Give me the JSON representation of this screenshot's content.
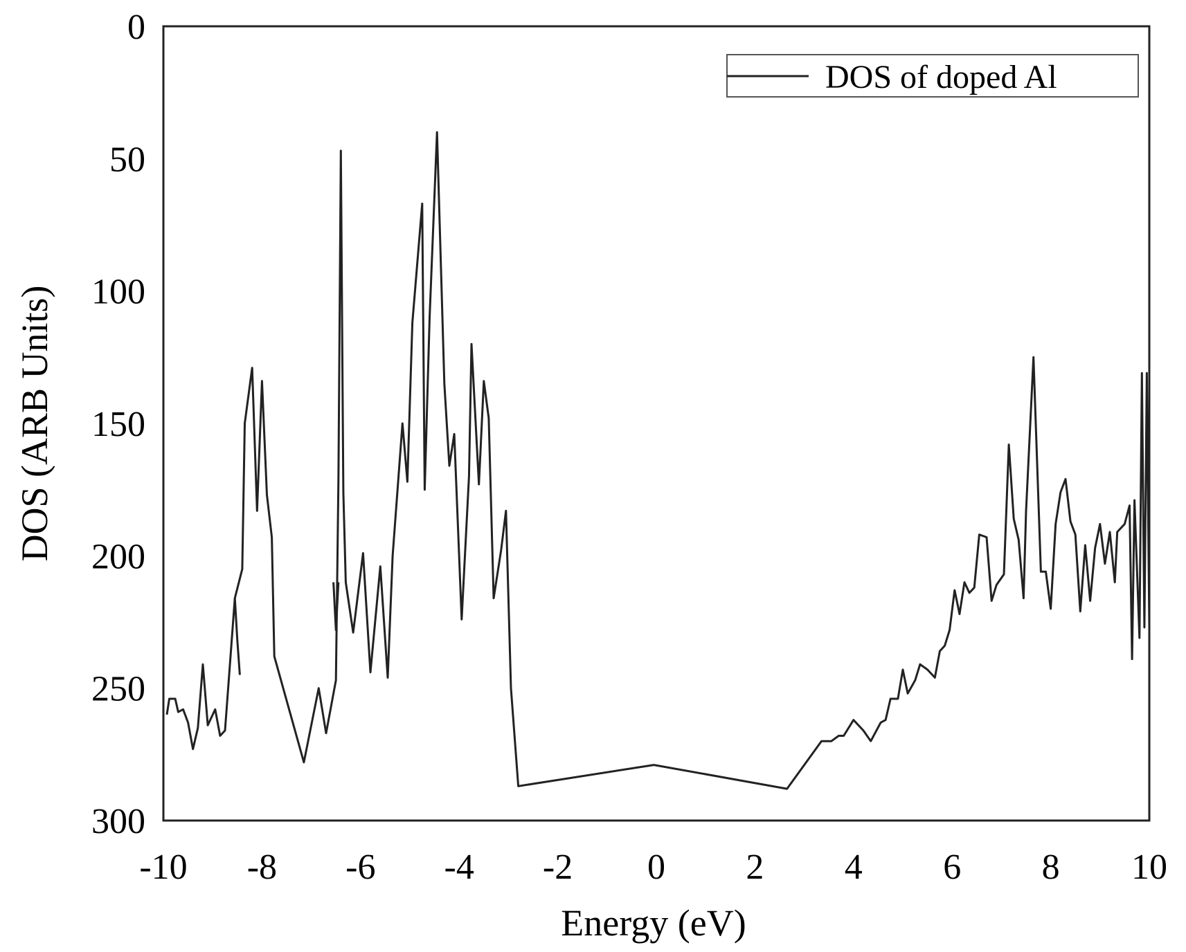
{
  "chart_data": {
    "type": "line",
    "title": "",
    "xlabel": "Energy (eV)",
    "ylabel": "DOS (ARB Units)",
    "xlim": [
      -10,
      10
    ],
    "ylim": [
      0,
      300
    ],
    "y_inverted": true,
    "grid": false,
    "legend_position": "top-right",
    "x_ticks": [
      "-10",
      "-8",
      "-6",
      "-4",
      "-2",
      "0",
      "2",
      "4",
      "6",
      "8",
      "10"
    ],
    "y_ticks": [
      "0",
      "50",
      "100",
      "150",
      "200",
      "250",
      "300"
    ],
    "line_color": "#222222",
    "series": [
      {
        "name": "DOS of doped Al",
        "segments": [
          [
            [
              -9.93,
              260
            ],
            [
              -9.88,
              254
            ],
            [
              -9.76,
              254
            ],
            [
              -9.7,
              259
            ],
            [
              -9.6,
              258
            ],
            [
              -9.5,
              263
            ],
            [
              -9.4,
              273
            ],
            [
              -9.3,
              265
            ],
            [
              -9.2,
              241
            ],
            [
              -9.1,
              264
            ],
            [
              -8.95,
              258
            ],
            [
              -8.85,
              268
            ],
            [
              -8.75,
              266
            ],
            [
              -8.55,
              216
            ],
            [
              -8.4,
              205
            ],
            [
              -8.35,
              150
            ],
            [
              -8.2,
              129
            ],
            [
              -8.1,
              183
            ],
            [
              -8.0,
              134
            ],
            [
              -7.9,
              177
            ],
            [
              -7.8,
              193
            ],
            [
              -7.75,
              238
            ],
            [
              -7.15,
              278
            ],
            [
              -6.85,
              250
            ],
            [
              -6.7,
              267
            ],
            [
              -6.5,
              247
            ],
            [
              -6.45,
              172
            ],
            [
              -6.4,
              47
            ],
            [
              -6.35,
              176
            ],
            [
              -6.3,
              210
            ],
            [
              -6.15,
              229
            ],
            [
              -5.95,
              199
            ],
            [
              -5.8,
              244
            ],
            [
              -5.6,
              204
            ],
            [
              -5.45,
              246
            ],
            [
              -5.35,
              200
            ],
            [
              -5.15,
              150
            ],
            [
              -5.05,
              172
            ],
            [
              -4.95,
              112
            ],
            [
              -4.75,
              67
            ],
            [
              -4.7,
              175
            ],
            [
              -4.6,
              110
            ],
            [
              -4.45,
              40
            ],
            [
              -4.3,
              135
            ],
            [
              -4.2,
              166
            ],
            [
              -4.1,
              154
            ],
            [
              -3.95,
              224
            ],
            [
              -3.8,
              170
            ],
            [
              -3.75,
              120
            ],
            [
              -3.6,
              173
            ],
            [
              -3.5,
              134
            ],
            [
              -3.4,
              148
            ],
            [
              -3.3,
              216
            ],
            [
              -3.15,
              198
            ],
            [
              -3.05,
              183
            ],
            [
              -2.95,
              250
            ],
            [
              -2.8,
              287
            ],
            [
              -0.05,
              279
            ],
            [
              2.65,
              288
            ],
            [
              3.35,
              270
            ],
            [
              3.55,
              270
            ],
            [
              3.7,
              268
            ],
            [
              3.8,
              268
            ],
            [
              4.0,
              262
            ],
            [
              4.2,
              266
            ],
            [
              4.35,
              270
            ],
            [
              4.55,
              263
            ],
            [
              4.65,
              262
            ],
            [
              4.75,
              254
            ],
            [
              4.9,
              254
            ],
            [
              5.0,
              243
            ],
            [
              5.1,
              252
            ],
            [
              5.25,
              247
            ],
            [
              5.35,
              241
            ],
            [
              5.5,
              243
            ],
            [
              5.65,
              246
            ],
            [
              5.75,
              236
            ],
            [
              5.85,
              234
            ],
            [
              5.95,
              228
            ],
            [
              6.05,
              213
            ],
            [
              6.15,
              222
            ],
            [
              6.25,
              210
            ],
            [
              6.35,
              214
            ],
            [
              6.45,
              212
            ],
            [
              6.55,
              192
            ],
            [
              6.7,
              193
            ],
            [
              6.8,
              217
            ],
            [
              6.9,
              211
            ],
            [
              7.05,
              207
            ],
            [
              7.15,
              158
            ],
            [
              7.25,
              186
            ],
            [
              7.35,
              194
            ],
            [
              7.45,
              216
            ],
            [
              7.5,
              183
            ],
            [
              7.65,
              125
            ],
            [
              7.8,
              206
            ],
            [
              7.9,
              206
            ],
            [
              8.0,
              220
            ],
            [
              8.1,
              188
            ],
            [
              8.2,
              176
            ],
            [
              8.3,
              171
            ],
            [
              8.4,
              187
            ],
            [
              8.5,
              192
            ],
            [
              8.6,
              221
            ],
            [
              8.7,
              196
            ],
            [
              8.8,
              217
            ],
            [
              8.9,
              197
            ],
            [
              9.0,
              188
            ],
            [
              9.1,
              203
            ],
            [
              9.2,
              191
            ],
            [
              9.3,
              210
            ],
            [
              9.35,
              191
            ],
            [
              9.5,
              188
            ],
            [
              9.6,
              181
            ],
            [
              9.65,
              239
            ],
            [
              9.7,
              179
            ],
            [
              9.8,
              231
            ],
            [
              9.85,
              131
            ],
            [
              9.9,
              227
            ],
            [
              9.95,
              131
            ],
            [
              10.0,
              227
            ]
          ],
          [
            [
              -8.55,
              216
            ],
            [
              -8.5,
              232
            ],
            [
              -8.45,
              245
            ]
          ],
          [
            [
              -6.55,
              210
            ],
            [
              -6.5,
              228
            ],
            [
              -6.45,
              210
            ]
          ]
        ]
      }
    ]
  }
}
